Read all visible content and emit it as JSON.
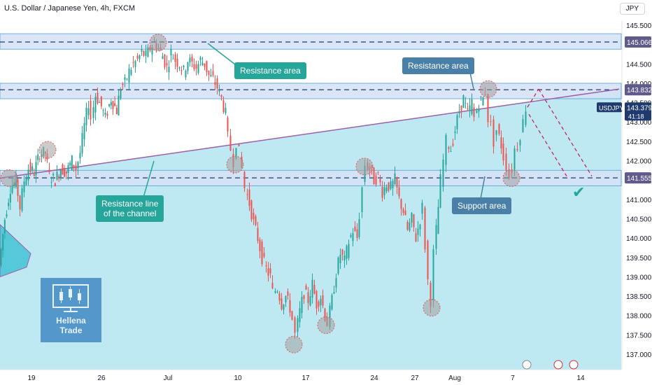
{
  "header": {
    "title": "U.S. Dollar / Japanese Yen, 4h, FXCM"
  },
  "currency_button": "JPY",
  "annotations": {
    "resistance_area_top": "Resistance area",
    "resistance_area_right": "Resistance area",
    "resistance_line": "Resistance line\nof the channel",
    "support_area": "Support area"
  },
  "logo": {
    "text": "Hellena\nTrade"
  },
  "colors": {
    "up": "#26a69a",
    "down": "#ef5350",
    "zone_fill": "#d6e3f7",
    "channel_fill": "#b3e5f0",
    "trendline": "#9c5fa8",
    "support_line": "#1f3a6e",
    "badge": "#5f5b8a"
  },
  "chart_data": {
    "type": "candlestick",
    "symbol": "USDJPY",
    "current_price": "143.379",
    "countdown": "41:18",
    "ylim": [
      136.7,
      145.7
    ],
    "y_ticks": [
      "145.500",
      "145.000",
      "144.500",
      "144.000",
      "143.500",
      "143.000",
      "142.500",
      "142.000",
      "141.500",
      "141.000",
      "140.500",
      "140.000",
      "139.500",
      "139.000",
      "138.500",
      "138.000",
      "137.500",
      "137.000"
    ],
    "x_ticks": [
      "19",
      "26",
      "Jul",
      "10",
      "17",
      "24",
      "27",
      "Aug",
      "7",
      "14"
    ],
    "levels": [
      {
        "price": 145.066,
        "label": "145.066"
      },
      {
        "price": 143.832,
        "label": "143.832"
      },
      {
        "price": 141.555,
        "label": "141.555"
      }
    ],
    "zones": [
      {
        "from": 144.88,
        "to": 145.28
      },
      {
        "from": 143.6,
        "to": 144.0
      },
      {
        "from": 141.35,
        "to": 141.75
      }
    ],
    "path": [
      [
        0,
        139.3
      ],
      [
        8,
        140.5
      ],
      [
        16,
        141.3
      ],
      [
        24,
        141.5
      ],
      [
        30,
        140.8
      ],
      [
        36,
        141.5
      ],
      [
        42,
        141.8
      ],
      [
        50,
        141.7
      ],
      [
        58,
        142.2
      ],
      [
        66,
        142.2
      ],
      [
        72,
        141.6
      ],
      [
        80,
        141.5
      ],
      [
        88,
        141.8
      ],
      [
        96,
        141.7
      ],
      [
        104,
        142.0
      ],
      [
        110,
        141.8
      ],
      [
        116,
        142.2
      ],
      [
        122,
        142.9
      ],
      [
        128,
        143.5
      ],
      [
        132,
        143.1
      ],
      [
        138,
        143.7
      ],
      [
        146,
        143.4
      ],
      [
        152,
        143.1
      ],
      [
        160,
        143.6
      ],
      [
        168,
        143.3
      ],
      [
        174,
        143.9
      ],
      [
        180,
        144.0
      ],
      [
        186,
        144.3
      ],
      [
        192,
        144.5
      ],
      [
        198,
        144.6
      ],
      [
        204,
        144.8
      ],
      [
        210,
        144.7
      ],
      [
        216,
        144.9
      ],
      [
        222,
        145.05
      ],
      [
        228,
        144.9
      ],
      [
        234,
        144.7
      ],
      [
        240,
        144.4
      ],
      [
        246,
        144.8
      ],
      [
        252,
        144.6
      ],
      [
        258,
        144.5
      ],
      [
        264,
        144.3
      ],
      [
        270,
        144.6
      ],
      [
        276,
        144.5
      ],
      [
        282,
        144.4
      ],
      [
        288,
        144.6
      ],
      [
        294,
        144.5
      ],
      [
        300,
        144.2
      ],
      [
        306,
        144.1
      ],
      [
        312,
        143.9
      ],
      [
        318,
        143.6
      ],
      [
        324,
        143.2
      ],
      [
        328,
        142.6
      ],
      [
        332,
        142.3
      ],
      [
        336,
        142.0
      ],
      [
        340,
        142.5
      ],
      [
        344,
        142.2
      ],
      [
        348,
        141.8
      ],
      [
        352,
        141.3
      ],
      [
        358,
        140.9
      ],
      [
        364,
        140.4
      ],
      [
        370,
        140.0
      ],
      [
        376,
        139.5
      ],
      [
        382,
        139.2
      ],
      [
        388,
        139.0
      ],
      [
        392,
        138.6
      ],
      [
        398,
        138.7
      ],
      [
        404,
        138.3
      ],
      [
        410,
        138.5
      ],
      [
        416,
        138.2
      ],
      [
        420,
        137.9
      ],
      [
        424,
        137.5
      ],
      [
        430,
        138.1
      ],
      [
        436,
        138.6
      ],
      [
        442,
        138.4
      ],
      [
        448,
        138.8
      ],
      [
        454,
        138.3
      ],
      [
        460,
        138.5
      ],
      [
        466,
        138.0
      ],
      [
        470,
        137.8
      ],
      [
        476,
        138.4
      ],
      [
        482,
        139.1
      ],
      [
        488,
        139.6
      ],
      [
        494,
        139.4
      ],
      [
        500,
        139.9
      ],
      [
        506,
        140.2
      ],
      [
        512,
        140.0
      ],
      [
        516,
        140.6
      ],
      [
        520,
        141.3
      ],
      [
        524,
        141.9
      ],
      [
        530,
        141.8
      ],
      [
        536,
        141.5
      ],
      [
        542,
        141.6
      ],
      [
        548,
        141.2
      ],
      [
        554,
        141.4
      ],
      [
        560,
        141.3
      ],
      [
        566,
        141.5
      ],
      [
        572,
        141.0
      ],
      [
        578,
        140.7
      ],
      [
        584,
        140.2
      ],
      [
        590,
        140.5
      ],
      [
        596,
        140.0
      ],
      [
        602,
        140.5
      ],
      [
        606,
        140.8
      ],
      [
        610,
        139.8
      ],
      [
        614,
        138.9
      ],
      [
        618,
        138.4
      ],
      [
        622,
        139.6
      ],
      [
        628,
        140.8
      ],
      [
        632,
        141.5
      ],
      [
        636,
        142.0
      ],
      [
        640,
        142.5
      ],
      [
        646,
        142.3
      ],
      [
        652,
        142.8
      ],
      [
        658,
        143.3
      ],
      [
        664,
        143.6
      ],
      [
        670,
        143.2
      ],
      [
        676,
        143.5
      ],
      [
        680,
        143.1
      ],
      [
        686,
        143.5
      ],
      [
        692,
        143.6
      ],
      [
        696,
        143.8
      ],
      [
        700,
        143.1
      ],
      [
        704,
        142.9
      ],
      [
        708,
        142.5
      ],
      [
        712,
        142.8
      ],
      [
        718,
        142.4
      ],
      [
        722,
        142.1
      ],
      [
        726,
        141.9
      ],
      [
        730,
        141.6
      ],
      [
        734,
        141.8
      ],
      [
        738,
        142.3
      ],
      [
        742,
        142.4
      ],
      [
        746,
        142.7
      ],
      [
        750,
        143.0
      ],
      [
        754,
        143.38
      ]
    ],
    "highlight_circles": [
      {
        "x": 13,
        "price": 141.55
      },
      {
        "x": 68,
        "price": 142.28
      },
      {
        "x": 226,
        "price": 145.05
      },
      {
        "x": 336,
        "price": 141.9
      },
      {
        "x": 420,
        "price": 137.25
      },
      {
        "x": 466,
        "price": 137.75
      },
      {
        "x": 521,
        "price": 141.85
      },
      {
        "x": 617,
        "price": 138.2
      },
      {
        "x": 698,
        "price": 143.85
      },
      {
        "x": 731,
        "price": 141.55
      }
    ],
    "trendline": {
      "x1": 0,
      "p1": 141.55,
      "x2": 885,
      "p2": 143.85
    },
    "projection": [
      {
        "from_x": 754,
        "from_p": 143.38,
        "to_x": 770,
        "to_p": 143.85
      },
      {
        "from_x": 756,
        "from_p": 143.2,
        "to_x": 810,
        "to_p": 141.6
      },
      {
        "from_x": 770,
        "from_p": 143.85,
        "to_x": 846,
        "to_p": 141.6
      }
    ]
  }
}
